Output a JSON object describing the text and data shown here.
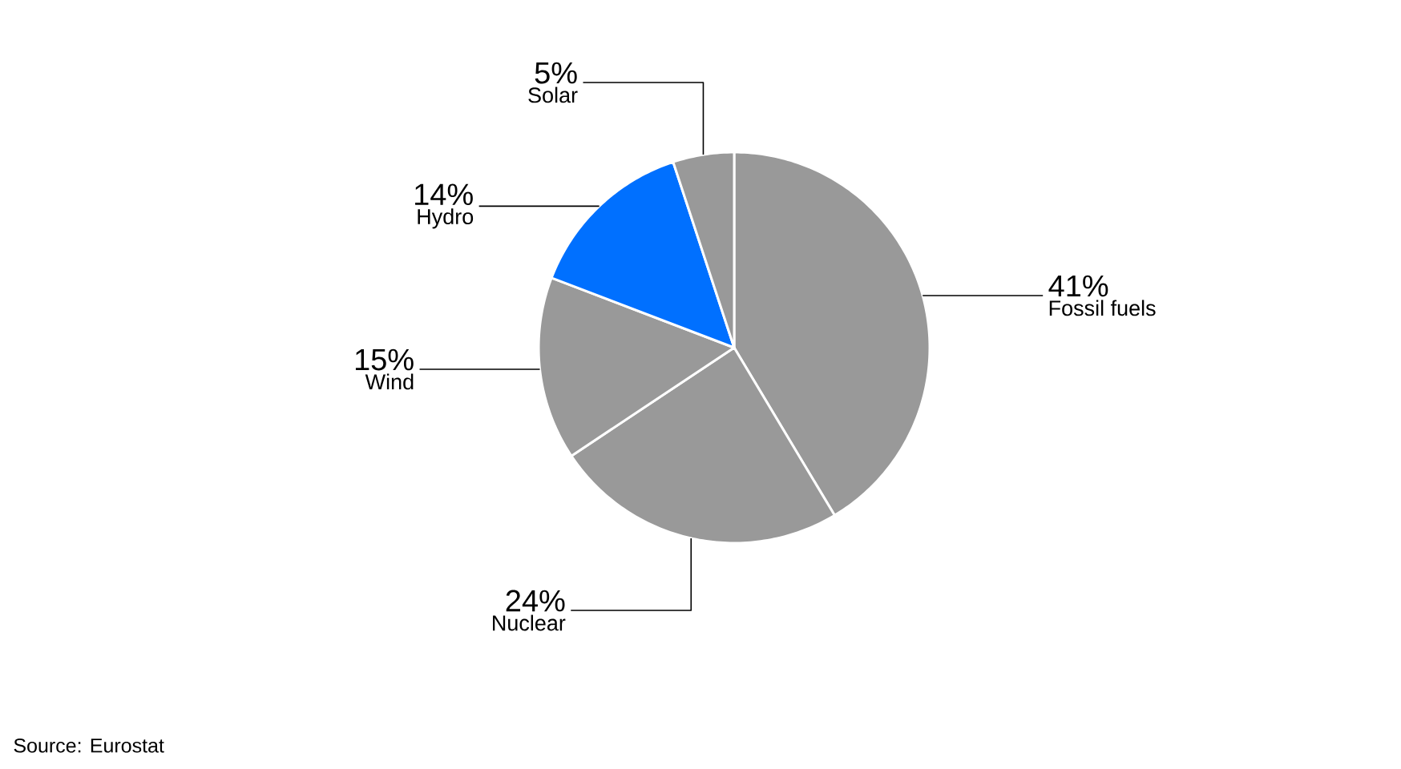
{
  "chart_data": {
    "type": "pie",
    "categories": [
      "Fossil fuels",
      "Nuclear",
      "Wind",
      "Hydro",
      "Solar"
    ],
    "values": [
      41,
      24,
      15,
      14,
      5
    ],
    "colors": [
      "#999999",
      "#999999",
      "#999999",
      "#0070ff",
      "#999999"
    ],
    "value_labels": [
      "41%",
      "24%",
      "15%",
      "14%",
      "5%"
    ],
    "annotations": [
      "Source: Eurostat"
    ]
  }
}
